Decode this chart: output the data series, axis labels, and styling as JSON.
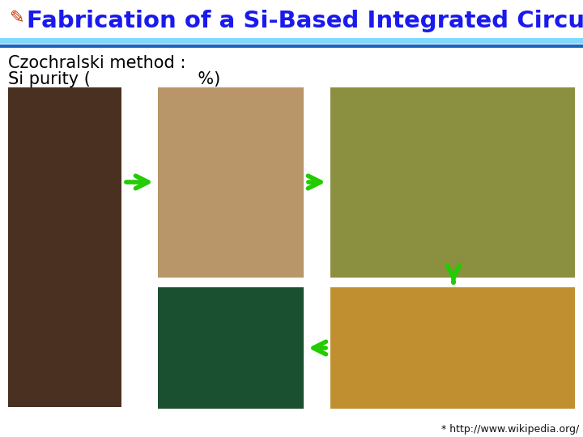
{
  "title": "Fabrication of a Si-Based Integrated Circuit",
  "title_fontsize": 21,
  "title_color": "#1a1aee",
  "bg_color": "#ffffff",
  "line1_color": "#80d8ff",
  "line2_color": "#1565c0",
  "subtitle1": "Czochralski method :",
  "subtitle2": "Si purity (                    %)",
  "subtitle_fontsize": 15,
  "footnote": "* http://www.wikipedia.org/",
  "footnote_fontsize": 9,
  "arrow_color": "#22cc00",
  "ingot_color": "#4a3020",
  "wafer_color": "#b8966a",
  "ic_color": "#8a9040",
  "pcb_color": "#1a5030",
  "chip_color": "#c09030"
}
